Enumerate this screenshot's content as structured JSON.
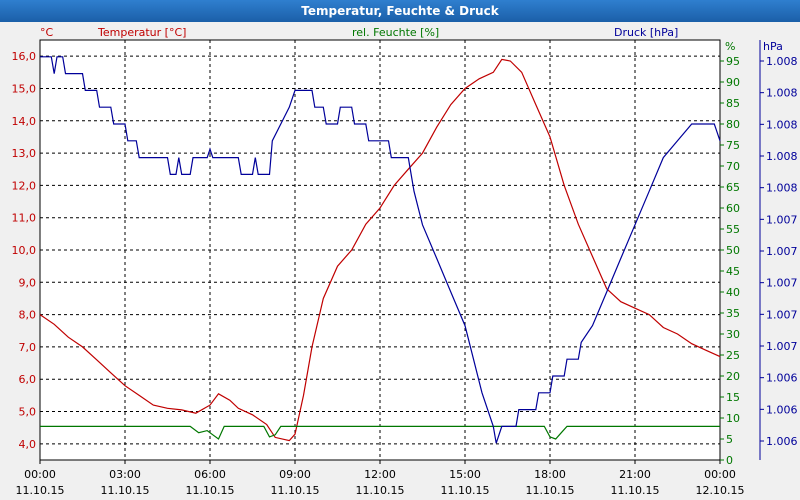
{
  "window": {
    "title": "Temperatur, Feuchte & Druck"
  },
  "colors": {
    "temperature": "#c00000",
    "humidity": "#007700",
    "pressure": "#00009a"
  },
  "chart_data": {
    "type": "line",
    "title": "Temperatur, Feuchte & Druck",
    "axes": {
      "left": {
        "unit": "°C",
        "min": 3.5,
        "max": 16.5,
        "ticks": [
          "16,0",
          "15,0",
          "14,0",
          "13,0",
          "12,0",
          "11,0",
          "10,0",
          "9,0",
          "8,0",
          "7,0",
          "6,0",
          "5,0",
          "4,0"
        ]
      },
      "right1": {
        "unit": "%",
        "min": 0,
        "max": 100,
        "ticks": [
          "95",
          "90",
          "85",
          "80",
          "75",
          "70",
          "65",
          "60",
          "55",
          "50",
          "45",
          "40",
          "35",
          "30",
          "25",
          "20",
          "15",
          "10",
          "5",
          "0"
        ]
      },
      "right2": {
        "unit": "hPa",
        "ticks": [
          "1.008",
          "1.008",
          "1.008",
          "1.008",
          "1.008",
          "1.007",
          "1.007",
          "1.007",
          "1.007",
          "1.007",
          "1.006",
          "1.006",
          "1.006"
        ]
      }
    },
    "x_labels": [
      {
        "time": "00:00",
        "date": "11.10.15"
      },
      {
        "time": "03:00",
        "date": "11.10.15"
      },
      {
        "time": "06:00",
        "date": "11.10.15"
      },
      {
        "time": "09:00",
        "date": "11.10.15"
      },
      {
        "time": "12:00",
        "date": "11.10.15"
      },
      {
        "time": "15:00",
        "date": "11.10.15"
      },
      {
        "time": "18:00",
        "date": "11.10.15"
      },
      {
        "time": "21:00",
        "date": "11.10.15"
      },
      {
        "time": "00:00",
        "date": "12.10.15"
      }
    ],
    "xlim_hours": [
      0,
      24
    ],
    "series": [
      {
        "name": "Temperatur [°C]",
        "axis": "left",
        "points": [
          [
            0,
            8.0
          ],
          [
            0.5,
            7.7
          ],
          [
            1,
            7.3
          ],
          [
            1.5,
            7.0
          ],
          [
            2,
            6.6
          ],
          [
            2.5,
            6.2
          ],
          [
            3,
            5.8
          ],
          [
            3.5,
            5.5
          ],
          [
            4,
            5.2
          ],
          [
            4.5,
            5.1
          ],
          [
            5,
            5.05
          ],
          [
            5.5,
            4.95
          ],
          [
            6,
            5.2
          ],
          [
            6.3,
            5.55
          ],
          [
            6.7,
            5.35
          ],
          [
            7,
            5.1
          ],
          [
            7.5,
            4.9
          ],
          [
            8,
            4.6
          ],
          [
            8.3,
            4.2
          ],
          [
            8.8,
            4.1
          ],
          [
            9,
            4.3
          ],
          [
            9.3,
            5.5
          ],
          [
            9.6,
            7.0
          ],
          [
            10,
            8.5
          ],
          [
            10.5,
            9.5
          ],
          [
            11,
            10.0
          ],
          [
            11.5,
            10.8
          ],
          [
            12,
            11.3
          ],
          [
            12.5,
            12.0
          ],
          [
            13,
            12.5
          ],
          [
            13.5,
            13.0
          ],
          [
            14,
            13.8
          ],
          [
            14.5,
            14.5
          ],
          [
            15,
            15.0
          ],
          [
            15.5,
            15.3
          ],
          [
            16,
            15.5
          ],
          [
            16.3,
            15.9
          ],
          [
            16.6,
            15.85
          ],
          [
            17,
            15.5
          ],
          [
            17.5,
            14.5
          ],
          [
            18,
            13.5
          ],
          [
            18.5,
            12.0
          ],
          [
            19,
            10.8
          ],
          [
            19.5,
            9.8
          ],
          [
            20,
            8.8
          ],
          [
            20.5,
            8.4
          ],
          [
            21,
            8.2
          ],
          [
            21.5,
            8.0
          ],
          [
            22,
            7.6
          ],
          [
            22.5,
            7.4
          ],
          [
            23,
            7.1
          ],
          [
            23.5,
            6.9
          ],
          [
            24,
            6.7
          ]
        ]
      },
      {
        "name": "rel. Feuchte [%]",
        "axis": "right1",
        "points": [
          [
            0,
            8
          ],
          [
            5.3,
            8
          ],
          [
            5.6,
            6.5
          ],
          [
            5.9,
            7
          ],
          [
            6.1,
            6
          ],
          [
            6.3,
            5
          ],
          [
            6.5,
            8
          ],
          [
            7.9,
            8
          ],
          [
            8.1,
            5.5
          ],
          [
            8.3,
            6
          ],
          [
            8.5,
            8
          ],
          [
            17.8,
            8
          ],
          [
            18,
            5.5
          ],
          [
            18.2,
            5
          ],
          [
            18.4,
            6.5
          ],
          [
            18.6,
            8
          ],
          [
            24,
            8
          ]
        ]
      },
      {
        "name": "Druck [hPa]",
        "axis": "right2",
        "points": [
          [
            0,
            96
          ],
          [
            0.4,
            96
          ],
          [
            0.5,
            92
          ],
          [
            0.6,
            96
          ],
          [
            0.8,
            96
          ],
          [
            0.9,
            92
          ],
          [
            1.5,
            92
          ],
          [
            1.6,
            88
          ],
          [
            2,
            88
          ],
          [
            2.1,
            84
          ],
          [
            2.5,
            84
          ],
          [
            2.6,
            80
          ],
          [
            3,
            80
          ],
          [
            3.1,
            76
          ],
          [
            3.4,
            76
          ],
          [
            3.5,
            72
          ],
          [
            4.5,
            72
          ],
          [
            4.6,
            68
          ],
          [
            4.8,
            68
          ],
          [
            4.9,
            72
          ],
          [
            5,
            68
          ],
          [
            5.3,
            68
          ],
          [
            5.4,
            72
          ],
          [
            5.9,
            72
          ],
          [
            6,
            74
          ],
          [
            6.1,
            72
          ],
          [
            7,
            72
          ],
          [
            7.1,
            68
          ],
          [
            7.5,
            68
          ],
          [
            7.6,
            72
          ],
          [
            7.7,
            68
          ],
          [
            8.1,
            68
          ],
          [
            8.2,
            76
          ],
          [
            8.5,
            80
          ],
          [
            8.8,
            84
          ],
          [
            9,
            88
          ],
          [
            9.6,
            88
          ],
          [
            9.7,
            84
          ],
          [
            10,
            84
          ],
          [
            10.1,
            80
          ],
          [
            10.5,
            80
          ],
          [
            10.6,
            84
          ],
          [
            11,
            84
          ],
          [
            11.1,
            80
          ],
          [
            11.5,
            80
          ],
          [
            11.6,
            76
          ],
          [
            12.3,
            76
          ],
          [
            12.4,
            72
          ],
          [
            13,
            72
          ],
          [
            13.2,
            64
          ],
          [
            13.5,
            56
          ],
          [
            14,
            48
          ],
          [
            14.5,
            40
          ],
          [
            15,
            32
          ],
          [
            15.3,
            24
          ],
          [
            15.6,
            16
          ],
          [
            16,
            8
          ],
          [
            16.1,
            4
          ],
          [
            16.3,
            8
          ],
          [
            16.8,
            8
          ],
          [
            16.9,
            12
          ],
          [
            17.5,
            12
          ],
          [
            17.6,
            16
          ],
          [
            18,
            16
          ],
          [
            18.1,
            20
          ],
          [
            18.5,
            20
          ],
          [
            18.6,
            24
          ],
          [
            19,
            24
          ],
          [
            19.1,
            28
          ],
          [
            19.5,
            32
          ],
          [
            20,
            40
          ],
          [
            20.5,
            48
          ],
          [
            21,
            56
          ],
          [
            21.5,
            64
          ],
          [
            22,
            72
          ],
          [
            22.5,
            76
          ],
          [
            23,
            80
          ],
          [
            23.8,
            80
          ],
          [
            24,
            76
          ]
        ]
      }
    ]
  }
}
